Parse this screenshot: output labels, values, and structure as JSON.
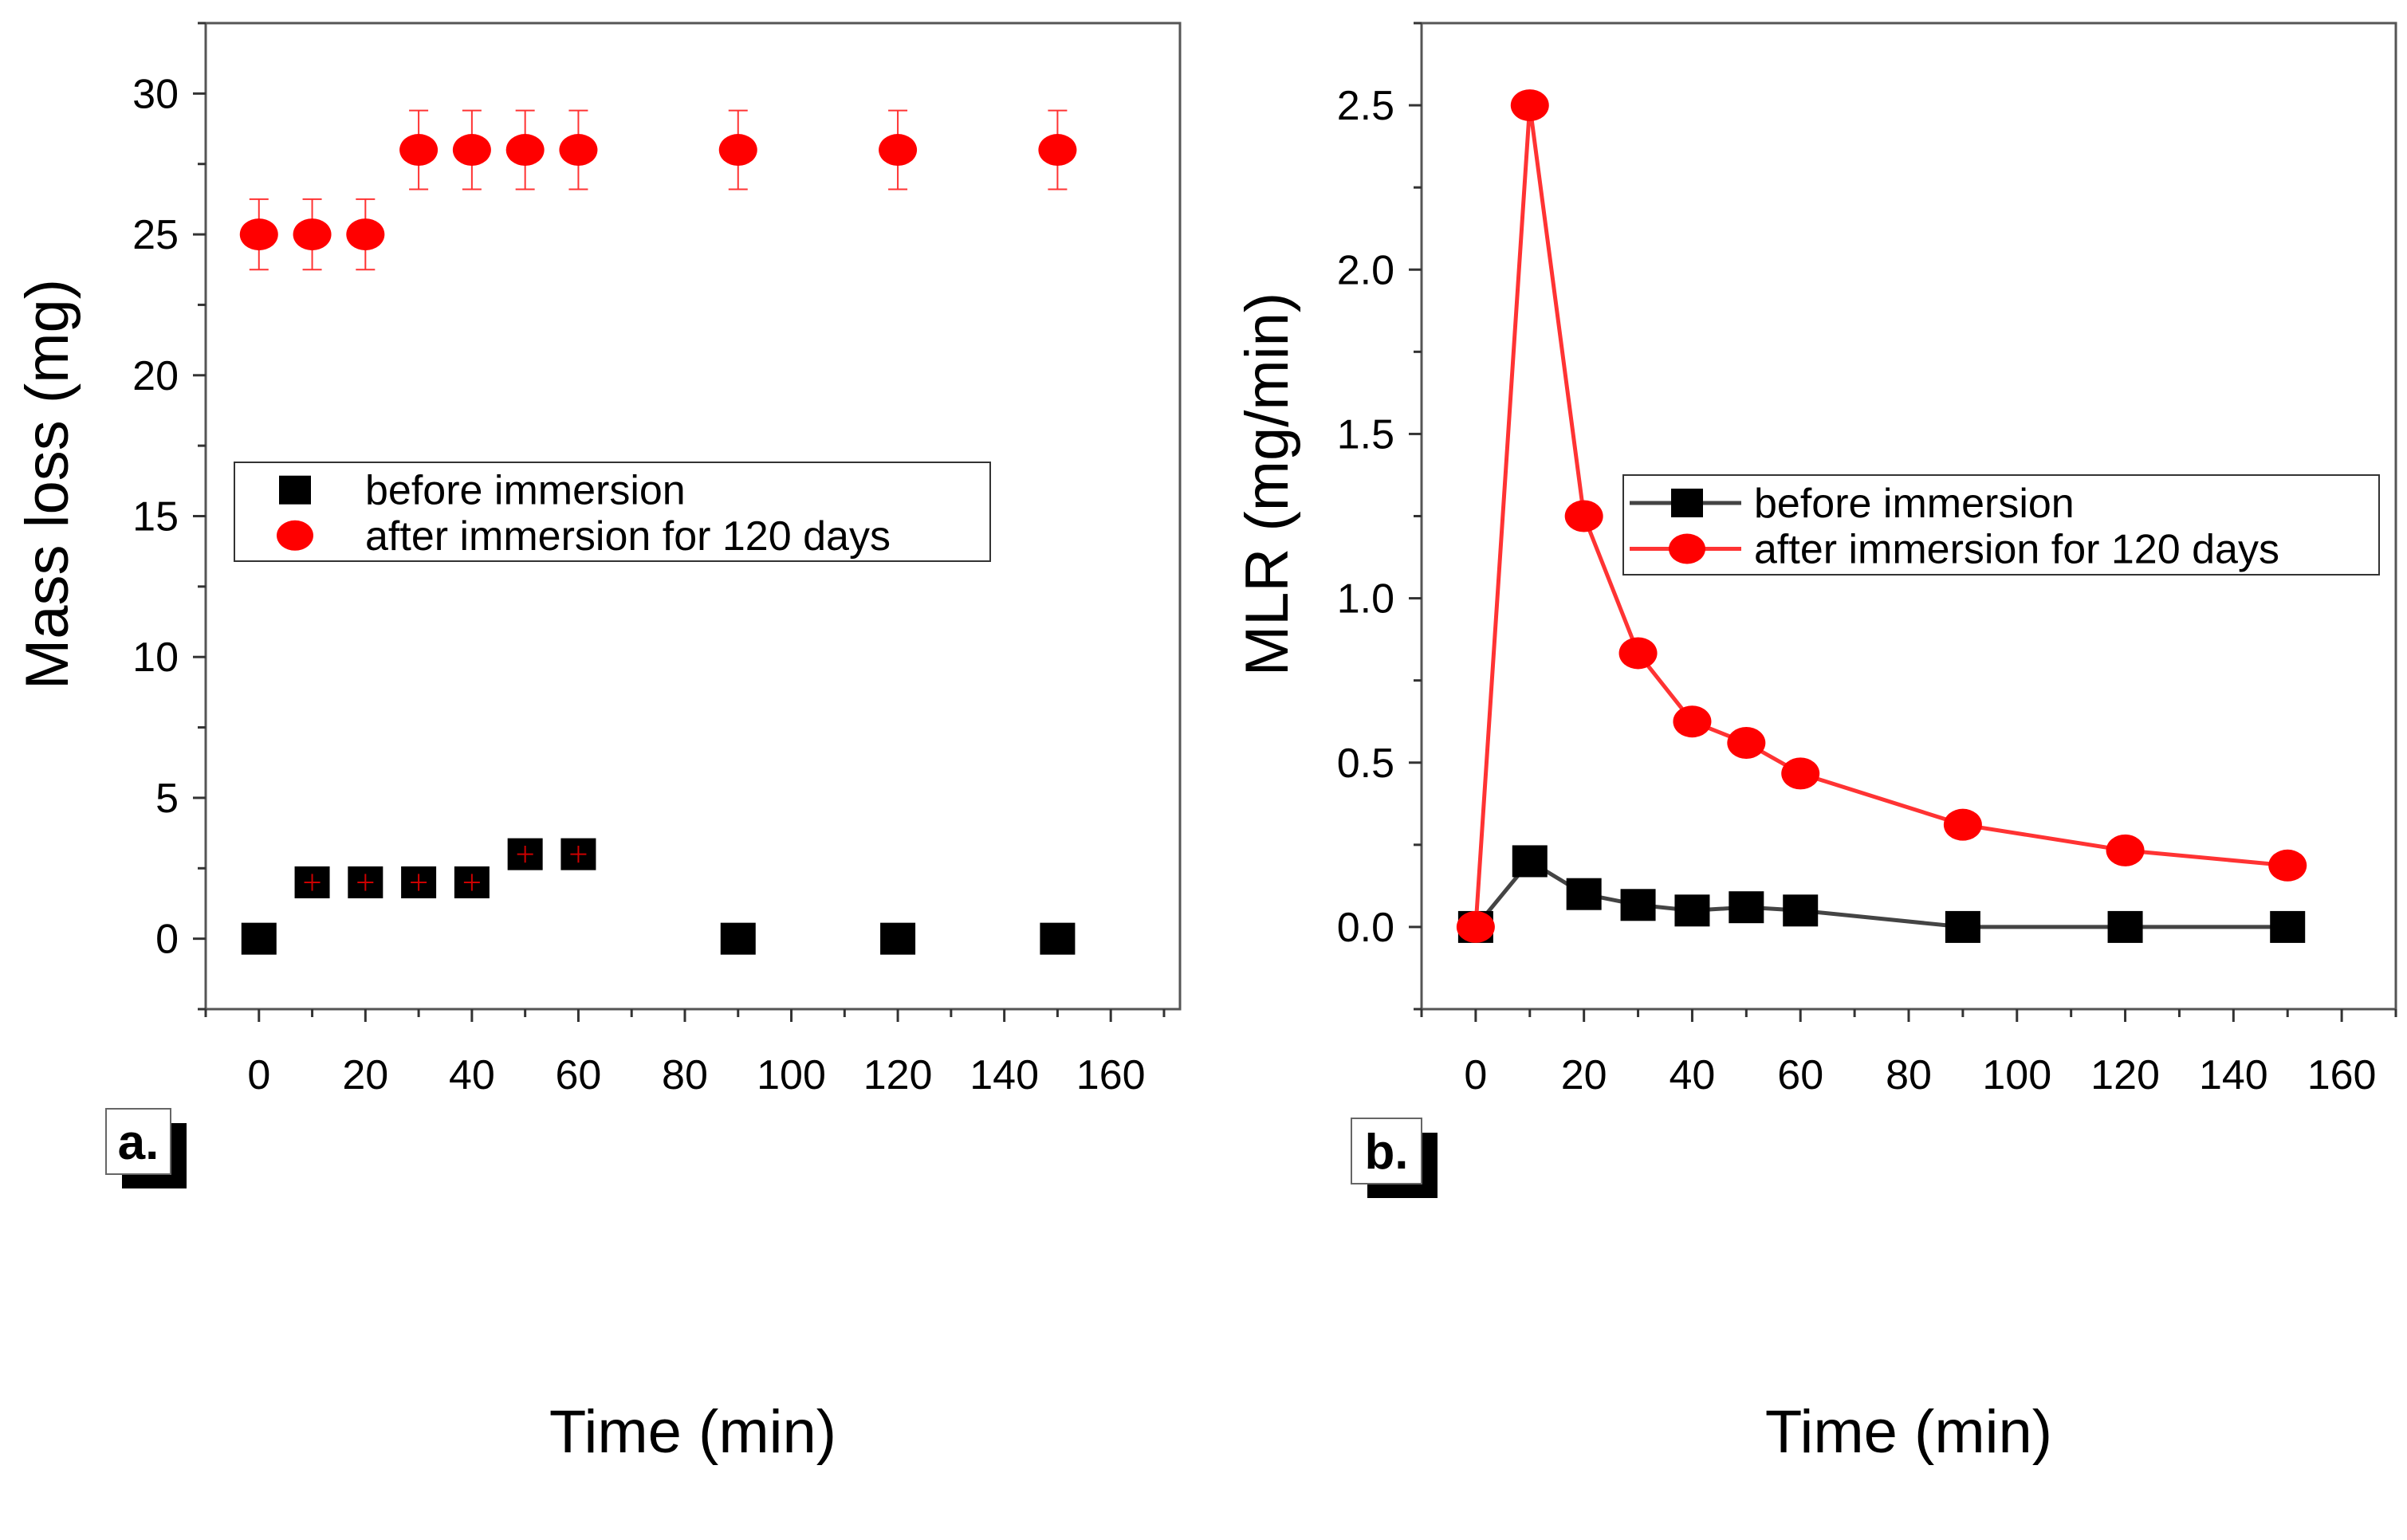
{
  "colors": {
    "red": "#ff0000",
    "black": "#000000",
    "line_black": "#444444",
    "line_red": "#ff3333"
  },
  "chart_data": [
    {
      "type": "scatter",
      "panel_label": "a.",
      "xlabel": "Time (min)",
      "ylabel": "Mass loss (mg)",
      "xlim": [
        -10,
        173
      ],
      "ylim": [
        -2.5,
        32.5
      ],
      "xticks": [
        0,
        20,
        40,
        60,
        80,
        100,
        120,
        140,
        160
      ],
      "yticks": [
        0,
        5,
        10,
        15,
        20,
        25,
        30
      ],
      "grid": false,
      "legend_position": "center-left",
      "x": [
        0,
        10,
        20,
        30,
        40,
        50,
        60,
        90,
        120,
        150
      ],
      "series": [
        {
          "name": "before immersion",
          "marker": "square",
          "color": "#000000",
          "values": [
            0,
            2,
            2,
            2,
            2,
            3,
            3,
            0,
            0,
            0
          ],
          "error": [
            0,
            0.3,
            0.3,
            0.3,
            0.3,
            0.3,
            0.3,
            0,
            0,
            0
          ]
        },
        {
          "name": "after immersion for 120 days",
          "marker": "circle",
          "color": "#ff0000",
          "values": [
            25,
            25,
            25,
            28,
            28,
            28,
            28,
            28,
            28,
            28
          ],
          "error": [
            1.25,
            1.25,
            1.25,
            1.4,
            1.4,
            1.4,
            1.4,
            1.4,
            1.4,
            1.4
          ]
        }
      ]
    },
    {
      "type": "line",
      "panel_label": "b.",
      "xlabel": "Time (min)",
      "ylabel": "MLR (mg/min)",
      "xlim": [
        -10,
        170
      ],
      "ylim": [
        -0.25,
        2.75
      ],
      "xticks": [
        0,
        20,
        40,
        60,
        80,
        100,
        120,
        140,
        160
      ],
      "yticks": [
        "0.0",
        "0.5",
        "1.0",
        "1.5",
        "2.0",
        "2.5"
      ],
      "grid": false,
      "legend_position": "center-right",
      "x": [
        0,
        10,
        20,
        30,
        40,
        50,
        60,
        90,
        120,
        150
      ],
      "series": [
        {
          "name": "before immersion",
          "marker": "square",
          "color": "#000000",
          "line_color": "#444444",
          "values": [
            0,
            0.2,
            0.1,
            0.067,
            0.05,
            0.06,
            0.05,
            0,
            0,
            0
          ]
        },
        {
          "name": "after immersion for 120 days",
          "marker": "circle",
          "color": "#ff0000",
          "line_color": "#ff3333",
          "values": [
            0,
            2.5,
            1.25,
            0.833,
            0.625,
            0.56,
            0.467,
            0.311,
            0.233,
            0.187
          ]
        }
      ]
    }
  ]
}
